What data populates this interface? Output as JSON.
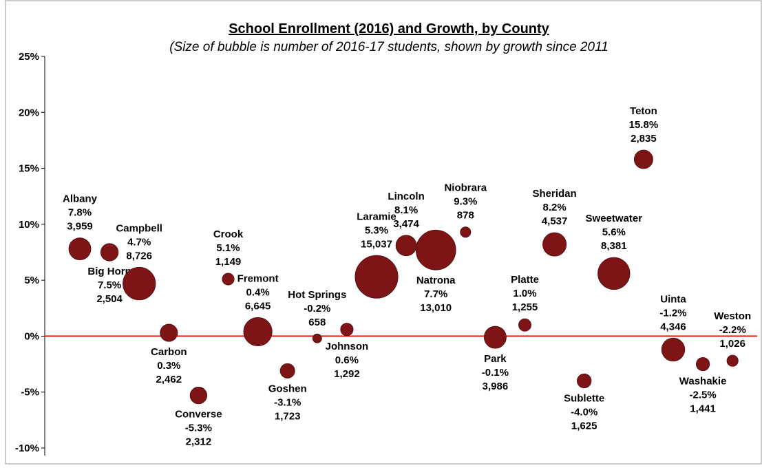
{
  "chart_data": {
    "type": "bubble",
    "title": "School Enrollment (2016) and Growth, by County",
    "subtitle": "(Size of bubble is number of 2016-17 students, shown by growth since 2011",
    "categories": [
      "Albany",
      "Big Horn",
      "Campbell",
      "Carbon",
      "Converse",
      "Crook",
      "Fremont",
      "Goshen",
      "Hot Springs",
      "Johnson",
      "Laramie",
      "Lincoln",
      "Natrona",
      "Niobrara",
      "Park",
      "Platte",
      "Sheridan",
      "Sublette",
      "Sweetwater",
      "Teton",
      "Uinta",
      "Washakie",
      "Weston"
    ],
    "values": [
      7.8,
      7.5,
      4.7,
      0.3,
      -5.3,
      5.1,
      0.4,
      -3.1,
      -0.2,
      0.6,
      5.3,
      8.1,
      7.7,
      9.3,
      -0.1,
      1.0,
      8.2,
      -4.0,
      5.6,
      15.8,
      -1.2,
      -2.5,
      -2.2
    ],
    "value_labels": [
      "7.8%",
      "7.5%",
      "4.7%",
      "0.3%",
      "-5.3%",
      "5.1%",
      "0.4%",
      "-3.1%",
      "-0.2%",
      "0.6%",
      "5.3%",
      "8.1%",
      "7.7%",
      "9.3%",
      "-0.1%",
      "1.0%",
      "8.2%",
      "-4.0%",
      "5.6%",
      "15.8%",
      "-1.2%",
      "-2.5%",
      "-2.2%"
    ],
    "sizes": [
      3959,
      2504,
      8726,
      2462,
      2312,
      1149,
      6645,
      1723,
      658,
      1292,
      15037,
      3474,
      13010,
      878,
      3986,
      1255,
      4537,
      1625,
      8381,
      2835,
      4346,
      1441,
      1026
    ],
    "size_labels": [
      "3,959",
      "2,504",
      "8,726",
      "2,462",
      "2,312",
      "1,149",
      "6,645",
      "1,723",
      "658",
      "1,292",
      "15,037",
      "3,474",
      "13,010",
      "878",
      "3,986",
      "1,255",
      "4,537",
      "1,625",
      "8,381",
      "2,835",
      "4,346",
      "1,441",
      "1,026"
    ],
    "color": "#7d1517",
    "zero_line_color": "#e3231e",
    "ylim": [
      -10,
      25
    ],
    "yticks": [
      {
        "value": -10,
        "label": "-10%"
      },
      {
        "value": -5,
        "label": "-5%"
      },
      {
        "value": 0,
        "label": "0%"
      },
      {
        "value": 5,
        "label": "5%"
      },
      {
        "value": 10,
        "label": "10%"
      },
      {
        "value": 15,
        "label": "15%"
      },
      {
        "value": 20,
        "label": "20%"
      },
      {
        "value": 25,
        "label": "25%"
      }
    ],
    "grid": false
  }
}
